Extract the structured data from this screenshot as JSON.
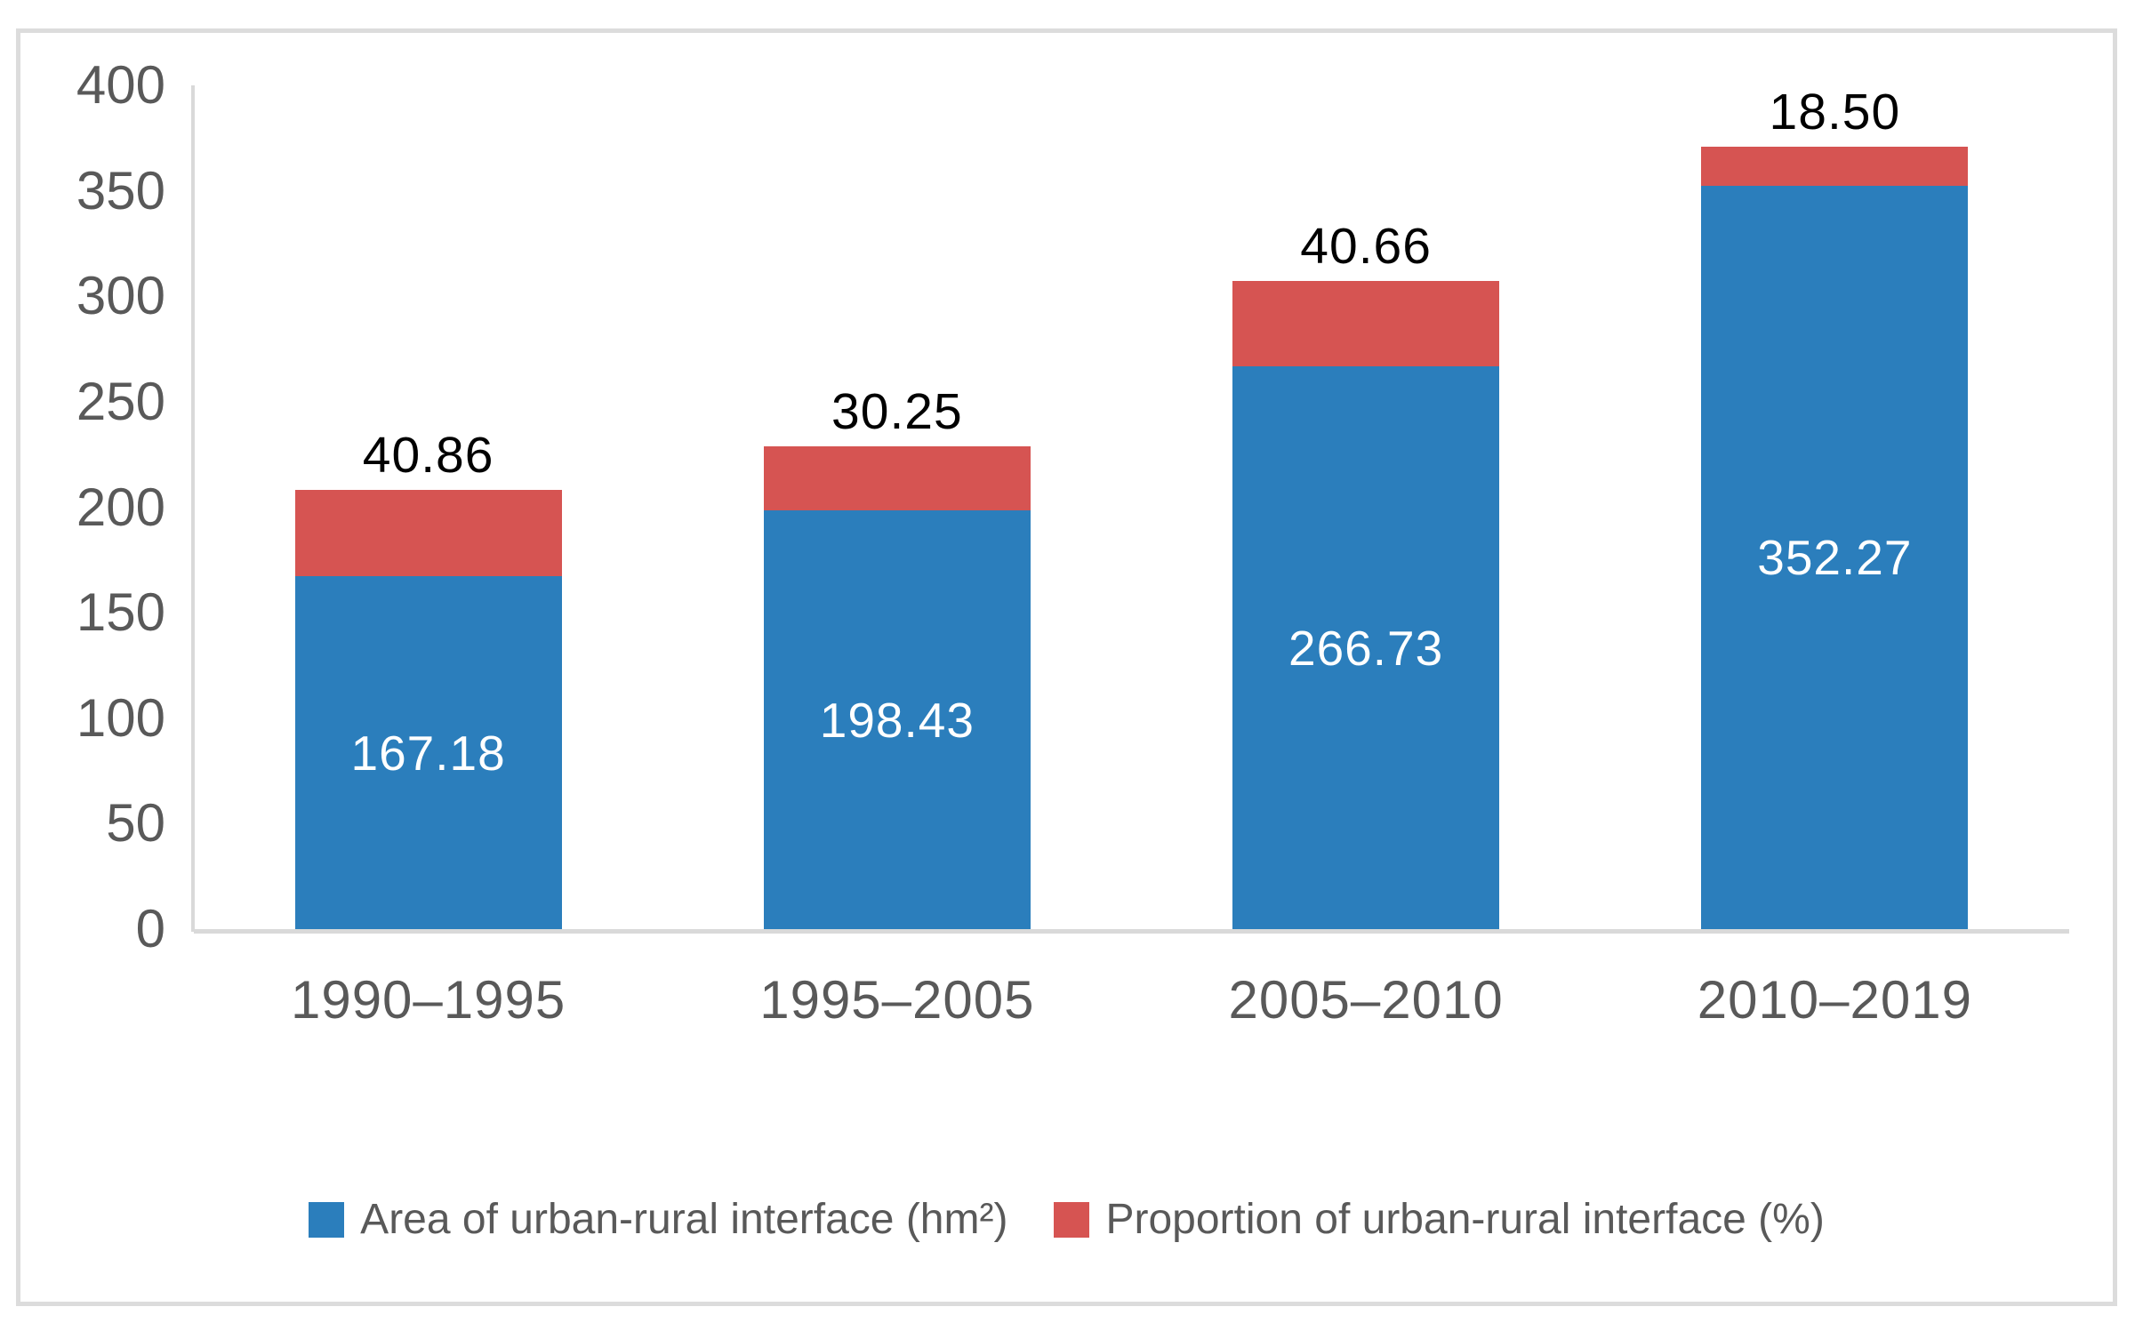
{
  "chart_data": {
    "type": "bar",
    "stacked": true,
    "title": "",
    "categories": [
      "1990–1995",
      "1995–2005",
      "2005–2010",
      "2010–2019"
    ],
    "series": [
      {
        "name": "Area of urban-rural interface (hm²)",
        "values": [
          167.18,
          198.43,
          266.73,
          352.27
        ],
        "labels": [
          "167.18",
          "198.43",
          "266.73",
          "352.27"
        ],
        "color": "#2b7ebc",
        "label_color": "#ffffff",
        "label_placement": "inside-center"
      },
      {
        "name": "Proportion of urban-rural interface (%)",
        "values": [
          40.86,
          30.25,
          40.66,
          18.5
        ],
        "labels": [
          "40.86",
          "30.25",
          "40.66",
          "18.50"
        ],
        "color": "#d65452",
        "label_color": "#000000",
        "label_placement": "outside-end"
      }
    ],
    "y_axis": {
      "min": 0,
      "max": 400,
      "step": 50,
      "ticks": [
        "0",
        "50",
        "100",
        "150",
        "200",
        "250",
        "300",
        "350",
        "400"
      ]
    },
    "grid": false,
    "legend_position": "bottom-center",
    "axis_line_color": "#d9d9d9",
    "tick_label_color": "#595959",
    "category_label_color": "#595959",
    "legend_text_color": "#595959",
    "background": "#ffffff",
    "border_color": "#dcdcdc"
  }
}
